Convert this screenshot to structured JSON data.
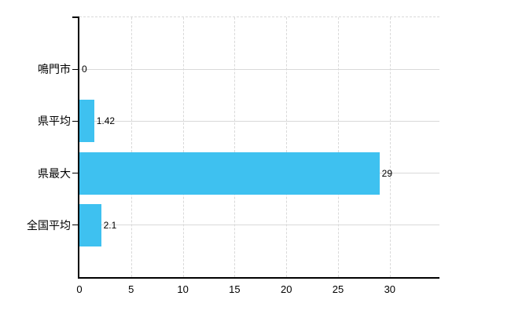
{
  "chart_data": {
    "type": "bar",
    "orientation": "horizontal",
    "title": "",
    "categories": [
      "鳴門市",
      "県平均",
      "県最大",
      "全国平均"
    ],
    "values": [
      0,
      1.42,
      29,
      2.1
    ],
    "value_labels": [
      "0",
      "1.42",
      "29",
      "2.1"
    ],
    "x_ticks": [
      0,
      5,
      10,
      15,
      20,
      25,
      30
    ],
    "x_tick_labels": [
      "0",
      "5",
      "10",
      "15",
      "20",
      "25",
      "30"
    ],
    "xlim": [
      0,
      34.8
    ],
    "grid": true,
    "legend": false,
    "bar_color": "#3ec1f0",
    "grid_color": "#d9d9d9",
    "axis_color": "#000000",
    "text_color": "#000000"
  }
}
